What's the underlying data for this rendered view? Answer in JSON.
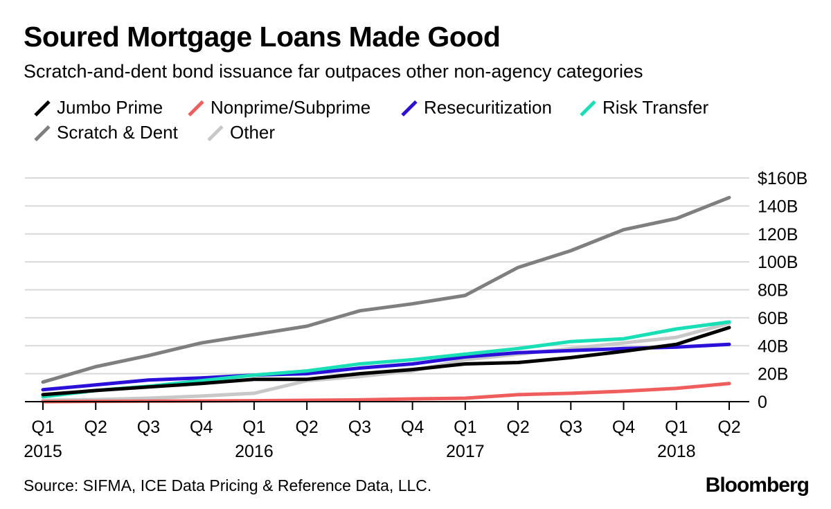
{
  "title": "Soured Mortgage Loans Made Good",
  "subtitle": "Scratch-and-dent bond issuance far outpaces other non-agency categories",
  "source": "Source: SIFMA, ICE Data Pricing & Reference Data, LLC.",
  "brand": "Bloomberg",
  "chart_data": {
    "type": "line",
    "categories": [
      "Q1",
      "Q2",
      "Q3",
      "Q4",
      "Q1",
      "Q2",
      "Q3",
      "Q4",
      "Q1",
      "Q2",
      "Q3",
      "Q4",
      "Q1",
      "Q2"
    ],
    "year_labels": [
      {
        "label": "2015",
        "index": 0
      },
      {
        "label": "2016",
        "index": 4
      },
      {
        "label": "2017",
        "index": 8
      },
      {
        "label": "2018",
        "index": 12
      }
    ],
    "ylim": [
      0,
      160
    ],
    "yticks": [
      0,
      20,
      40,
      60,
      80,
      100,
      120,
      140,
      160
    ],
    "ytick_labels": [
      "0",
      "20B",
      "40B",
      "60B",
      "80B",
      "100B",
      "120B",
      "140B",
      "$160B"
    ],
    "grid": true,
    "legend_position": "top-left",
    "series": [
      {
        "name": "Scratch & Dent",
        "color": "#7f7f7f",
        "values": [
          14,
          25,
          33,
          42,
          48,
          54,
          65,
          70,
          76,
          96,
          108,
          123,
          131,
          146
        ]
      },
      {
        "name": "Other",
        "color": "#c8c8c8",
        "values": [
          1,
          1.5,
          2.5,
          4,
          6,
          15,
          18,
          22,
          30,
          34,
          38,
          42,
          46,
          56
        ]
      },
      {
        "name": "Nonprime/Subprime",
        "color": "#f05d5d",
        "values": [
          0,
          0.2,
          0.4,
          0.5,
          0.7,
          1,
          1.3,
          2,
          2.5,
          5,
          6,
          7.5,
          9.5,
          13
        ]
      },
      {
        "name": "Resecuritization",
        "color": "#2a10d8",
        "values": [
          8.5,
          12,
          15.5,
          17,
          19,
          20,
          24,
          27,
          32,
          35,
          36.5,
          38,
          39,
          41
        ]
      },
      {
        "name": "Risk Transfer",
        "color": "#19dfb6",
        "values": [
          3.5,
          8,
          11,
          15,
          19,
          22,
          27,
          30,
          34,
          38,
          43,
          45,
          52,
          57
        ]
      },
      {
        "name": "Jumbo Prime",
        "color": "#000000",
        "values": [
          5,
          8,
          10.5,
          13,
          16,
          16,
          20,
          23,
          27,
          28,
          31.5,
          36,
          41,
          53
        ]
      }
    ],
    "legend_order": [
      "Jumbo Prime",
      "Nonprime/Subprime",
      "Resecuritization",
      "Risk Transfer",
      "Scratch & Dent",
      "Other"
    ]
  }
}
